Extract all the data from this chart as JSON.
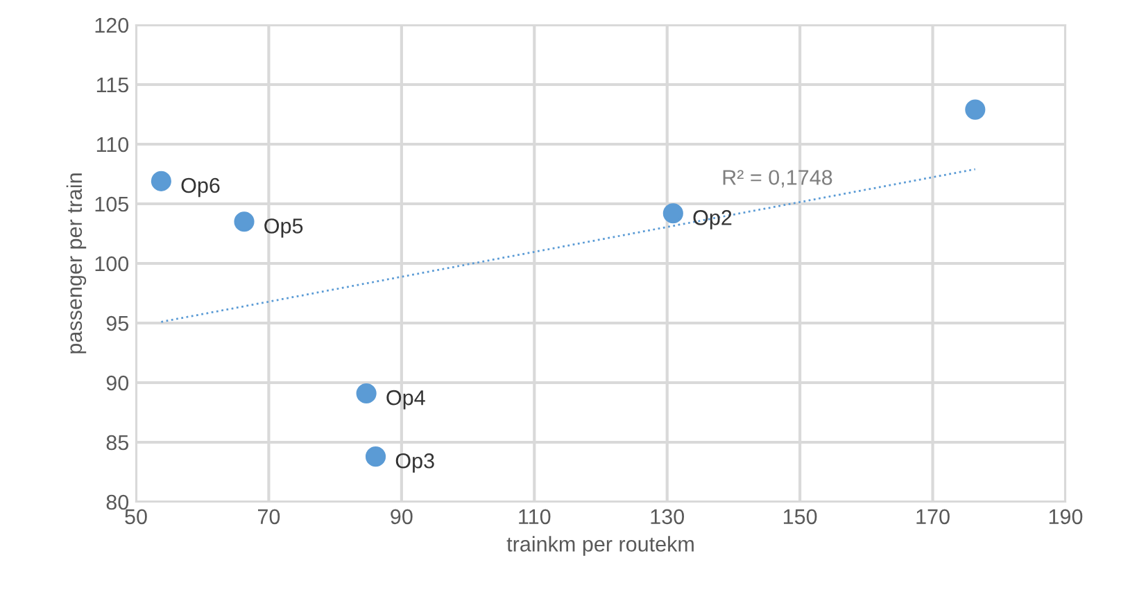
{
  "chart_data": {
    "type": "scatter",
    "xlabel": "trainkm per routekm",
    "ylabel": "passenger per train",
    "series": [
      {
        "color": "#5b9bd5",
        "marker": "circle",
        "x": [
          176.4,
          53.8,
          66.3,
          130.9,
          84.7,
          86.1
        ],
        "values": [
          112.9,
          106.9,
          103.5,
          104.2,
          89.1,
          83.8
        ]
      },
      {
        "type": "line",
        "color": "#5b9bd5",
        "marker": "none",
        "line_style": "dotted",
        "x": [
          53.8,
          176.4
        ],
        "values": [
          95.1,
          107.9
        ]
      }
    ],
    "annotations": [
      {
        "text": "Op6",
        "x": 53.8,
        "y": 106.9
      },
      {
        "text": "Op5",
        "x": 66.3,
        "y": 103.5
      },
      {
        "text": "Op2",
        "x": 130.9,
        "y": 104.2
      },
      {
        "text": "Op4",
        "x": 84.7,
        "y": 89.1
      },
      {
        "text": "Op3",
        "x": 86.1,
        "y": 83.8
      },
      "R² = 0,1748"
    ],
    "xlim": [
      50,
      190
    ],
    "xticks": [
      50,
      70,
      90,
      110,
      130,
      150,
      170,
      190
    ],
    "ylim": [
      80,
      120
    ],
    "yticks": [
      80,
      85,
      90,
      95,
      100,
      105,
      110,
      115,
      120
    ],
    "grid": true
  }
}
